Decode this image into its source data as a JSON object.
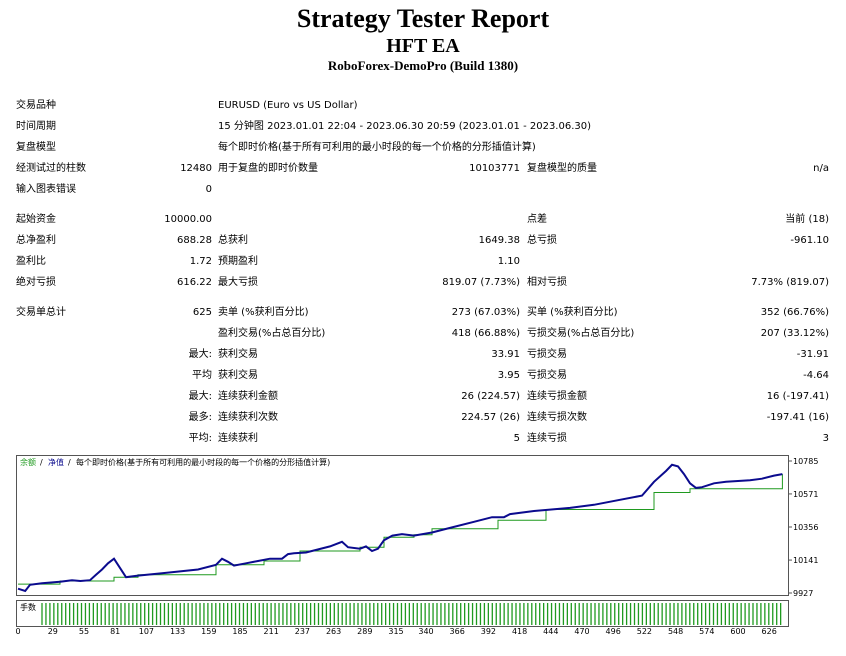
{
  "header": {
    "title": "Strategy Tester Report",
    "ea": "HFT EA",
    "server": "RoboForex-DemoPro (Build 1380)"
  },
  "info": {
    "symbol_label": "交易品种",
    "symbol_value": "EURUSD (Euro vs US Dollar)",
    "period_label": "时间周期",
    "period_value": "15 分钟图 2023.01.01 22:04 - 2023.06.30 20:59 (2023.01.01 - 2023.06.30)",
    "model_label": "复盘模型",
    "model_value": "每个即时价格(基于所有可利用的最小时段的每一个价格的分形插值计算)",
    "bars_label": "经测试过的柱数",
    "bars_value": "12480",
    "ticks_label": "用于复盘的即时价数量",
    "ticks_value": "10103771",
    "quality_label": "复盘模型的质量",
    "quality_value": "n/a",
    "errors_label": "输入图表错误",
    "errors_value": "0"
  },
  "stats": {
    "deposit_label": "起始资金",
    "deposit_value": "10000.00",
    "spread_label": "点差",
    "spread_value": "当前 (18)",
    "net_label": "总净盈利",
    "net_value": "688.28",
    "gross_profit_label": "总获利",
    "gross_profit_value": "1649.38",
    "gross_loss_label": "总亏损",
    "gross_loss_value": "-961.10",
    "pf_label": "盈利比",
    "pf_value": "1.72",
    "payoff_label": "预期盈利",
    "payoff_value": "1.10",
    "abs_dd_label": "绝对亏损",
    "abs_dd_value": "616.22",
    "max_dd_label": "最大亏损",
    "max_dd_value": "819.07 (7.73%)",
    "rel_dd_label": "相对亏损",
    "rel_dd_value": "7.73% (819.07)",
    "trades_label": "交易单总计",
    "trades_value": "625",
    "short_label": "卖单 (%获利百分比)",
    "short_value": "273 (67.03%)",
    "long_label": "买单 (%获利百分比)",
    "long_value": "352 (66.76%)",
    "win_label": "盈利交易(%占总百分比)",
    "win_value": "418 (66.88%)",
    "loss_label": "亏损交易(%占总百分比)",
    "loss_value": "207 (33.12%)",
    "largest_prefix": "最大:",
    "largest_win_label": "获利交易",
    "largest_win_value": "33.91",
    "largest_loss_label": "亏损交易",
    "largest_loss_value": "-31.91",
    "avg_prefix": "平均",
    "avg_win_label": "获利交易",
    "avg_win_value": "3.95",
    "avg_loss_label": "亏损交易",
    "avg_loss_value": "-4.64",
    "max_prefix": "最大:",
    "consec_win_amt_label": "连续获利金额",
    "consec_win_amt_value": "26 (224.57)",
    "consec_loss_amt_label": "连续亏损金额",
    "consec_loss_amt_value": "16 (-197.41)",
    "most_prefix": "最多:",
    "consec_win_cnt_label": "连续获利次数",
    "consec_win_cnt_value": "224.57 (26)",
    "consec_loss_cnt_label": "连续亏损次数",
    "consec_loss_cnt_value": "-197.41 (16)",
    "avg2_prefix": "平均:",
    "avg_consec_win_label": "连续获利",
    "avg_consec_win_value": "5",
    "avg_consec_loss_label": "连续亏损",
    "avg_consec_loss_value": "3"
  },
  "chart_data": {
    "type": "line",
    "legend": {
      "balance": "余额",
      "equity": "净值",
      "model": "每个即时价格(基于所有可利用的最小时段的每一个价格的分形插值计算)"
    },
    "volume_label": "手数",
    "y_ticks": [
      10785,
      10571,
      10356,
      10141,
      9927
    ],
    "x_ticks": [
      0,
      29,
      55,
      81,
      107,
      133,
      159,
      185,
      211,
      237,
      263,
      289,
      315,
      340,
      366,
      392,
      418,
      444,
      470,
      496,
      522,
      548,
      574,
      600,
      626
    ],
    "xlim": [
      0,
      640
    ],
    "ylim": [
      9927,
      10785
    ],
    "colors": {
      "equity": "#0b0b8e",
      "balance": "#1f9a1f",
      "volume": "#1f9a1f"
    },
    "series": [
      {
        "name": "净值",
        "x": [
          0,
          6,
          10,
          20,
          35,
          45,
          52,
          60,
          65,
          70,
          75,
          80,
          85,
          90,
          100,
          120,
          150,
          165,
          170,
          175,
          180,
          190,
          200,
          210,
          220,
          225,
          230,
          240,
          260,
          270,
          275,
          285,
          290,
          295,
          300,
          305,
          312,
          320,
          330,
          345,
          360,
          380,
          395,
          405,
          410,
          430,
          460,
          480,
          500,
          520,
          530,
          540,
          545,
          550,
          555,
          560,
          565,
          570,
          580,
          590,
          600,
          610,
          620,
          630,
          637
        ],
        "y": [
          9955,
          9940,
          9980,
          9990,
          10000,
          10010,
          10005,
          10010,
          10045,
          10080,
          10120,
          10150,
          10090,
          10030,
          10040,
          10055,
          10080,
          10110,
          10150,
          10130,
          10105,
          10120,
          10135,
          10150,
          10150,
          10180,
          10185,
          10190,
          10230,
          10260,
          10225,
          10215,
          10230,
          10200,
          10215,
          10270,
          10300,
          10310,
          10300,
          10320,
          10350,
          10390,
          10420,
          10420,
          10440,
          10460,
          10480,
          10500,
          10530,
          10560,
          10650,
          10720,
          10760,
          10750,
          10700,
          10640,
          10610,
          10615,
          10640,
          10650,
          10655,
          10660,
          10670,
          10690,
          10700
        ]
      },
      {
        "name": "余额",
        "x": [
          0,
          35,
          80,
          100,
          165,
          205,
          235,
          285,
          305,
          330,
          345,
          400,
          440,
          530,
          560,
          637
        ],
        "y": [
          9985,
          10005,
          10030,
          10045,
          10110,
          10135,
          10200,
          10225,
          10290,
          10305,
          10345,
          10400,
          10470,
          10580,
          10605,
          10700
        ]
      }
    ]
  }
}
